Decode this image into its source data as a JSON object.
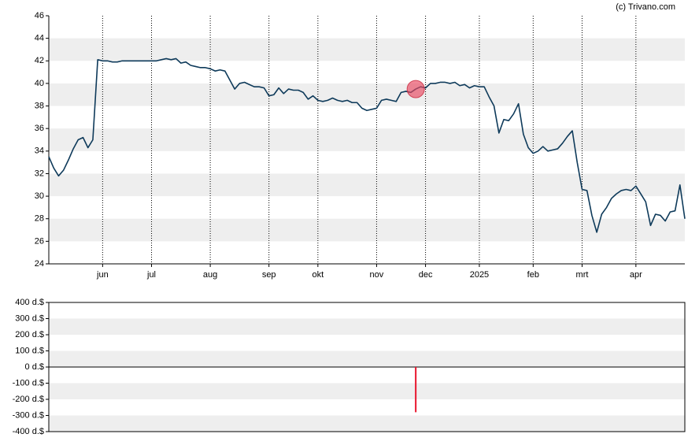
{
  "source": "(c) Trivano.com",
  "chart_data": [
    {
      "type": "line",
      "categories": [
        null,
        null,
        null,
        null,
        null,
        null,
        null,
        null,
        null,
        null,
        null,
        "jun",
        null,
        null,
        null,
        null,
        null,
        null,
        null,
        null,
        null,
        "jul",
        null,
        null,
        null,
        null,
        null,
        null,
        null,
        null,
        null,
        null,
        null,
        "aug",
        null,
        null,
        null,
        null,
        null,
        null,
        null,
        null,
        null,
        null,
        null,
        "sep",
        null,
        null,
        null,
        null,
        null,
        null,
        null,
        null,
        null,
        "okt",
        null,
        null,
        null,
        null,
        null,
        null,
        null,
        null,
        null,
        null,
        null,
        "nov",
        null,
        null,
        null,
        null,
        null,
        null,
        null,
        null,
        null,
        "dec",
        null,
        null,
        null,
        null,
        null,
        null,
        null,
        null,
        null,
        null,
        "2025",
        null,
        null,
        null,
        null,
        null,
        null,
        null,
        null,
        null,
        null,
        "feb",
        null,
        null,
        null,
        null,
        null,
        null,
        null,
        null,
        null,
        "mrt",
        null,
        null,
        null,
        null,
        null,
        null,
        null,
        null,
        null,
        null,
        "apr",
        null,
        null,
        null,
        null,
        null,
        null,
        null,
        null,
        null,
        null
      ],
      "series": [
        {
          "color": "#0e3a5a",
          "values": [
            33.5,
            32.5,
            31.8,
            32.3,
            33.2,
            34.2,
            35.0,
            35.2,
            34.3,
            35.0,
            42.1,
            42.0,
            42.0,
            41.9,
            41.9,
            42.0,
            42.0,
            42.0,
            42.0,
            42.0,
            42.0,
            42.0,
            42.0,
            42.1,
            42.2,
            42.1,
            42.2,
            41.8,
            41.9,
            41.6,
            41.5,
            41.4,
            41.4,
            41.3,
            41.1,
            41.2,
            41.1,
            40.3,
            39.5,
            40.0,
            40.1,
            39.9,
            39.7,
            39.7,
            39.6,
            38.9,
            39.0,
            39.6,
            39.1,
            39.5,
            39.4,
            39.4,
            39.2,
            38.6,
            38.9,
            38.5,
            38.4,
            38.5,
            38.7,
            38.5,
            38.4,
            38.5,
            38.3,
            38.3,
            37.8,
            37.6,
            37.7,
            37.8,
            38.5,
            38.6,
            38.5,
            38.4,
            39.2,
            39.3,
            39.2,
            39.5,
            39.7,
            39.6,
            40.0,
            40.0,
            40.1,
            40.1,
            40.0,
            40.1,
            39.8,
            39.9,
            39.6,
            39.8,
            39.7,
            39.7,
            38.8,
            38.0,
            35.6,
            36.8,
            36.7,
            37.3,
            38.2,
            35.5,
            34.3,
            33.8,
            34.0,
            34.4,
            34.0,
            34.1,
            34.2,
            34.7,
            35.3,
            35.8,
            33.0,
            30.6,
            30.5,
            28.3,
            26.8,
            28.4,
            29.0,
            29.8,
            30.2,
            30.5,
            30.6,
            30.5,
            30.9,
            30.2,
            29.5,
            27.4,
            28.4,
            28.3,
            27.8,
            28.6,
            28.7,
            31.0,
            28.0
          ]
        }
      ],
      "ylim": [
        24,
        46
      ],
      "yticks": [
        24,
        26,
        28,
        30,
        32,
        34,
        36,
        38,
        40,
        42,
        44,
        46
      ],
      "grid": true
    },
    {
      "type": "bar",
      "color": "#e8142c",
      "values": [
        null,
        null,
        null,
        null,
        null,
        null,
        null,
        null,
        null,
        null,
        null,
        null,
        null,
        null,
        null,
        null,
        null,
        null,
        null,
        null,
        null,
        null,
        null,
        null,
        null,
        null,
        null,
        null,
        null,
        null,
        null,
        null,
        null,
        null,
        null,
        null,
        null,
        null,
        null,
        null,
        null,
        null,
        null,
        null,
        null,
        null,
        null,
        null,
        null,
        null,
        null,
        null,
        null,
        null,
        null,
        null,
        null,
        null,
        null,
        null,
        null,
        null,
        null,
        null,
        null,
        null,
        null,
        null,
        null,
        null,
        null,
        null,
        null,
        null,
        null,
        -280,
        null,
        null,
        null,
        null,
        null,
        null,
        null,
        null,
        null,
        null,
        null,
        null,
        null,
        null,
        null,
        null,
        null,
        null,
        null,
        null,
        null,
        null,
        null,
        null,
        null,
        null,
        null,
        null,
        null,
        null,
        null,
        null,
        null,
        null,
        null,
        null,
        null,
        null,
        null,
        null,
        null,
        null,
        null,
        null,
        null,
        null,
        null,
        null,
        null,
        null,
        null,
        null,
        null,
        null,
        null
      ],
      "ylim": [
        -400,
        400
      ],
      "yticks": [
        {
          "value": -400,
          "label": "-400 d.$"
        },
        {
          "value": -300,
          "label": "-300 d.$"
        },
        {
          "value": -200,
          "label": "-200 d.$"
        },
        {
          "value": -100,
          "label": "-100 d.$"
        },
        {
          "value": 0,
          "label": "0 d.$"
        },
        {
          "value": 100,
          "label": "100 d.$"
        },
        {
          "value": 200,
          "label": "200 d.$"
        },
        {
          "value": 300,
          "label": "300 d.$"
        },
        {
          "value": 400,
          "label": "400 d.$"
        }
      ],
      "grid": true
    }
  ]
}
